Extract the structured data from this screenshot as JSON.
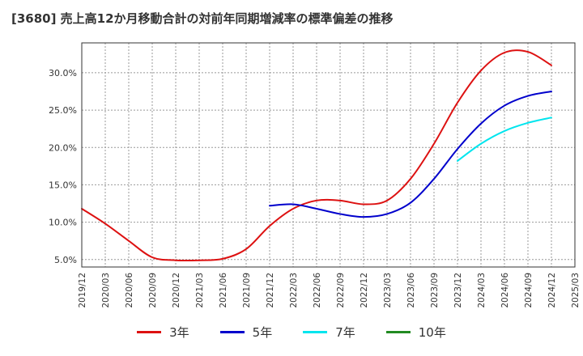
{
  "chart_data": {
    "type": "line",
    "title": "[3680]  売上高12か月移動合計の対前年同期増減率の標準偏差の推移",
    "xlabel": "",
    "ylabel": "",
    "x": [
      "2019/12",
      "2020/03",
      "2020/06",
      "2020/09",
      "2020/12",
      "2021/03",
      "2021/06",
      "2021/09",
      "2021/12",
      "2022/03",
      "2022/06",
      "2022/09",
      "2022/12",
      "2023/03",
      "2023/06",
      "2023/09",
      "2023/12",
      "2024/03",
      "2024/06",
      "2024/09",
      "2024/12",
      "2025/03"
    ],
    "ylim": [
      4.0,
      34.0
    ],
    "yticks": [
      5.0,
      10.0,
      15.0,
      20.0,
      25.0,
      30.0
    ],
    "ytick_labels": [
      "5.0%",
      "10.0%",
      "15.0%",
      "20.0%",
      "25.0%",
      "30.0%"
    ],
    "grid": true,
    "legend_position": "bottom",
    "series": [
      {
        "name": "3年",
        "color": "#dd1111",
        "values": [
          11.8,
          9.8,
          7.5,
          5.3,
          4.9,
          4.9,
          5.1,
          6.4,
          9.5,
          11.8,
          12.9,
          12.9,
          12.4,
          12.9,
          15.8,
          20.5,
          26.0,
          30.3,
          32.7,
          32.8,
          31.0,
          null
        ]
      },
      {
        "name": "5年",
        "color": "#0000cc",
        "values": [
          null,
          null,
          null,
          null,
          null,
          null,
          null,
          null,
          12.2,
          12.4,
          11.8,
          11.1,
          10.7,
          11.1,
          12.6,
          15.8,
          19.8,
          23.2,
          25.6,
          26.9,
          27.5,
          null
        ]
      },
      {
        "name": "7年",
        "color": "#00e5ee",
        "values": [
          null,
          null,
          null,
          null,
          null,
          null,
          null,
          null,
          null,
          null,
          null,
          null,
          null,
          null,
          null,
          null,
          18.2,
          20.5,
          22.2,
          23.3,
          24.0,
          null
        ]
      },
      {
        "name": "10年",
        "color": "#228b22",
        "values": [
          null,
          null,
          null,
          null,
          null,
          null,
          null,
          null,
          null,
          null,
          null,
          null,
          null,
          null,
          null,
          null,
          null,
          null,
          null,
          null,
          null,
          null
        ]
      }
    ]
  }
}
